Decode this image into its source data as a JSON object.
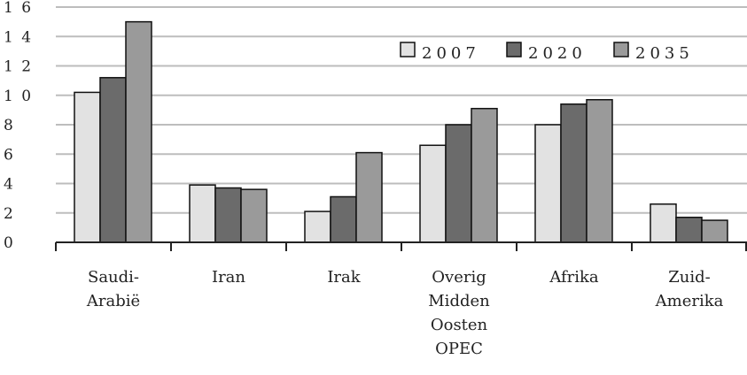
{
  "chart_data": {
    "type": "bar",
    "categories": [
      [
        "Saudi-",
        "Arabië"
      ],
      [
        "Iran"
      ],
      [
        "Irak"
      ],
      [
        "Overig",
        "Midden",
        "Oosten",
        "OPEC"
      ],
      [
        "Afrika"
      ],
      [
        "Zuid-",
        "Amerika"
      ]
    ],
    "series": [
      {
        "name": "2007",
        "color": "#e2e2e2",
        "values": [
          10.2,
          3.9,
          2.1,
          6.6,
          8.0,
          2.6
        ]
      },
      {
        "name": "2020",
        "color": "#6b6b6b",
        "values": [
          11.2,
          3.7,
          3.1,
          8.0,
          9.4,
          1.7
        ]
      },
      {
        "name": "2035",
        "color": "#9a9a9a",
        "values": [
          15.0,
          3.6,
          6.1,
          9.1,
          9.7,
          1.5
        ]
      }
    ],
    "ylim": [
      0,
      16
    ],
    "yticks": [
      0,
      2,
      4,
      6,
      8,
      10,
      12,
      14,
      16
    ],
    "ytick_labels": [
      "0",
      "2",
      "4",
      "6",
      "8",
      "1 0",
      "1 2",
      "1 4",
      "1 6"
    ],
    "grid": true,
    "legend_position": "top-right",
    "title": "",
    "xlabel": "",
    "ylabel": ""
  }
}
